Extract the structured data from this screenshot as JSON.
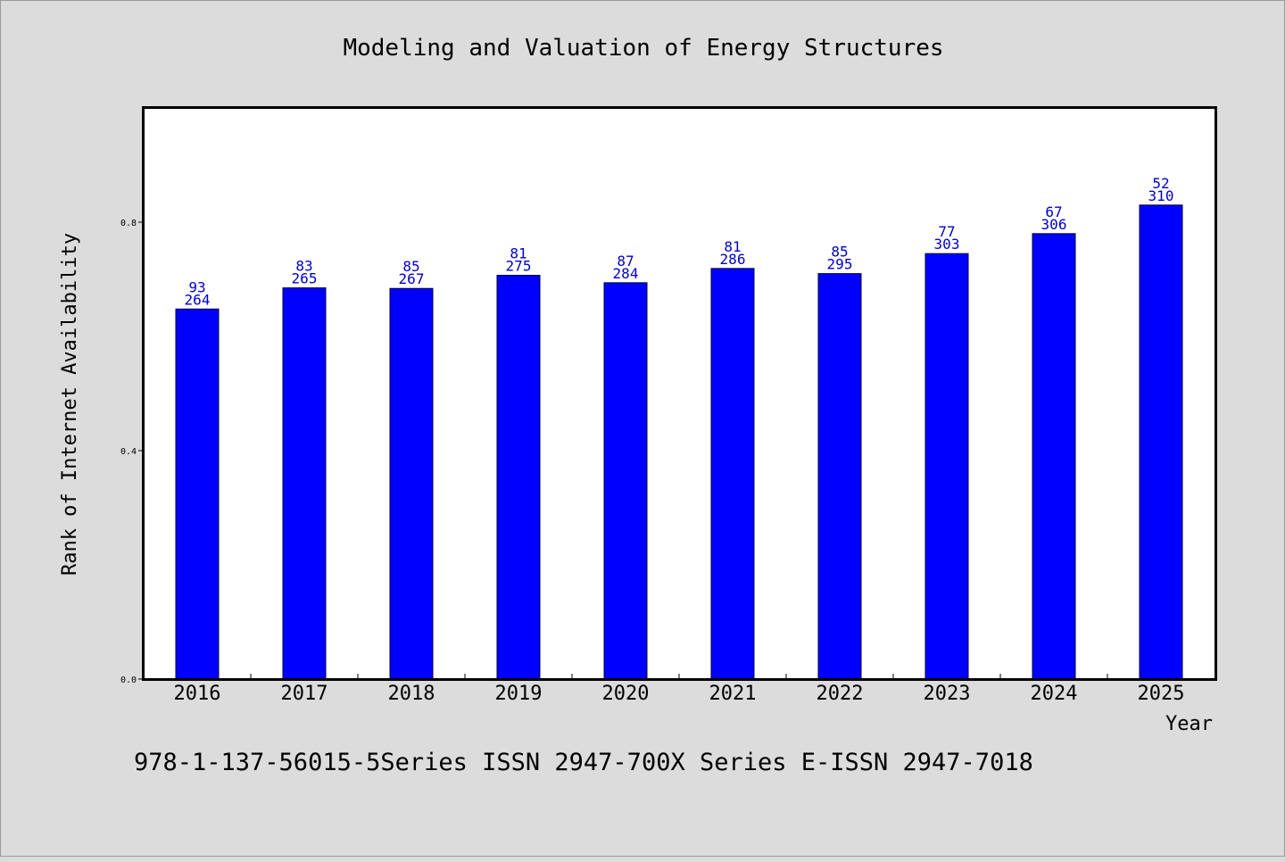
{
  "colors": {
    "background": "#dcdcdc",
    "plot_background": "#ffffff",
    "bar_fill": "#0000ff",
    "bar_stroke": "#00003a",
    "label_color": "#0000cc"
  },
  "footer": "978-1-137-56015-5Series ISSN 2947-700X Series E-ISSN 2947-7018",
  "chart_data": {
    "type": "bar",
    "title": "Modeling and Valuation of Energy Structures",
    "xlabel": "Year",
    "ylabel": "Rank of Internet Availability",
    "ylim": [
      0,
      1.0
    ],
    "yticks": [
      "0.0",
      "0.4",
      "0.8"
    ],
    "ytick_values": [
      0.0,
      0.4,
      0.8
    ],
    "grid": false,
    "categories": [
      "2016",
      "2017",
      "2018",
      "2019",
      "2020",
      "2021",
      "2022",
      "2023",
      "2024",
      "2025"
    ],
    "values": [
      0.648,
      0.685,
      0.684,
      0.707,
      0.694,
      0.719,
      0.71,
      0.745,
      0.78,
      0.83
    ],
    "label_top": [
      "93",
      "83",
      "85",
      "81",
      "87",
      "81",
      "85",
      "77",
      "67",
      "52"
    ],
    "label_bottom": [
      "264",
      "265",
      "267",
      "275",
      "284",
      "286",
      "295",
      "303",
      "306",
      "310"
    ]
  }
}
